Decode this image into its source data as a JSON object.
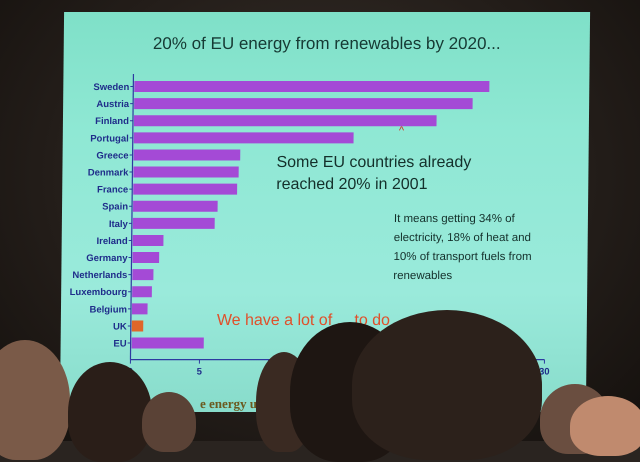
{
  "slide": {
    "title": "20% of EU energy from renewables by 2020...",
    "callout_primary": "Some EU countries already reached 20% in 2001",
    "callout_secondary": "It means getting 34% of electricity, 18% of heat and 10% of transport fuels from renewables",
    "callout_partial": "We have a lot of ... to do",
    "caret_mark": "^",
    "footer_partial": "e energy use"
  },
  "colors": {
    "bar": "#a44ad6",
    "bar_highlight": "#e0662a",
    "axis": "#2d3aa0",
    "label": "#1f2d8a",
    "slide_bg": "#8fe8d4"
  },
  "chart_data": {
    "type": "bar",
    "orientation": "horizontal",
    "title": "20% of EU energy from renewables by 2020...",
    "categories": [
      "Sweden",
      "Austria",
      "Finland",
      "Portugal",
      "Greece",
      "Denmark",
      "France",
      "Spain",
      "Italy",
      "Ireland",
      "Germany",
      "Netherlands",
      "Luxembourg",
      "Belgium",
      "UK",
      "EU"
    ],
    "values": [
      25.8,
      24.6,
      22,
      16,
      7.8,
      7.7,
      7.6,
      6.2,
      6,
      2.3,
      2,
      1.6,
      1.5,
      1.2,
      0.9,
      5.3
    ],
    "highlight_category": "UK",
    "xlim": [
      0,
      30
    ],
    "xticks": [
      0,
      5,
      10,
      30
    ],
    "xtick_labels": [
      "0",
      "5",
      "10",
      "30"
    ],
    "grid": false
  }
}
